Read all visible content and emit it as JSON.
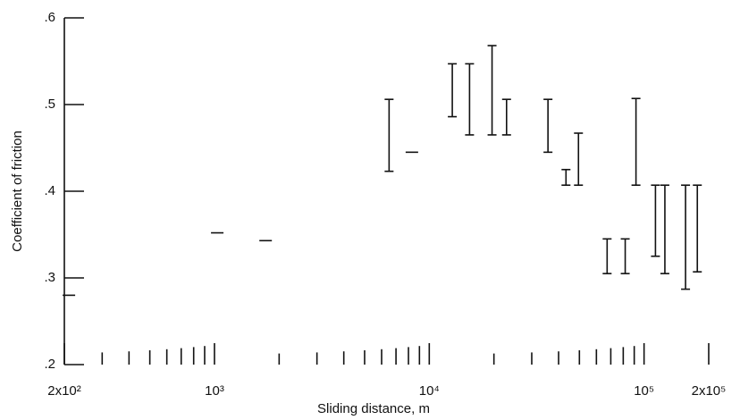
{
  "chart_data": {
    "type": "range",
    "x_label": "Sliding distance,  m",
    "y_label": "Coefficient of friction",
    "log_x": true,
    "color": "#111111",
    "x": [
      210,
      1030,
      1730,
      6500,
      8300,
      12800,
      15400,
      19600,
      22900,
      35700,
      43300,
      49500,
      67300,
      81700,
      91700,
      113000,
      125000,
      156000,
      177000
    ],
    "high": [
      0.28,
      0.352,
      0.343,
      0.506,
      0.445,
      0.547,
      0.547,
      0.568,
      0.506,
      0.506,
      0.425,
      0.467,
      0.345,
      0.345,
      0.507,
      0.407,
      0.407,
      0.407,
      0.407
    ],
    "low": [
      0.28,
      0.352,
      0.343,
      0.423,
      0.445,
      0.486,
      0.465,
      0.465,
      0.465,
      0.445,
      0.407,
      0.407,
      0.305,
      0.305,
      0.407,
      0.325,
      0.305,
      0.287,
      0.307
    ],
    "xlim": [
      200,
      200000
    ],
    "xticks": [
      {
        "value": 200,
        "label": "2x10²"
      },
      {
        "value": 1000,
        "label": "10³"
      },
      {
        "value": 10000,
        "label": "10⁴"
      },
      {
        "value": 100000,
        "label": "10⁵"
      },
      {
        "value": 200000,
        "label": "2x10⁵"
      }
    ],
    "ylim": [
      0.2,
      0.6
    ],
    "yticks": [
      {
        "value": 0.2,
        "label": ".2"
      },
      {
        "value": 0.3,
        "label": ".3"
      },
      {
        "value": 0.4,
        "label": ".4"
      },
      {
        "value": 0.5,
        "label": ".5"
      },
      {
        "value": 0.6,
        "label": ".6"
      }
    ]
  }
}
